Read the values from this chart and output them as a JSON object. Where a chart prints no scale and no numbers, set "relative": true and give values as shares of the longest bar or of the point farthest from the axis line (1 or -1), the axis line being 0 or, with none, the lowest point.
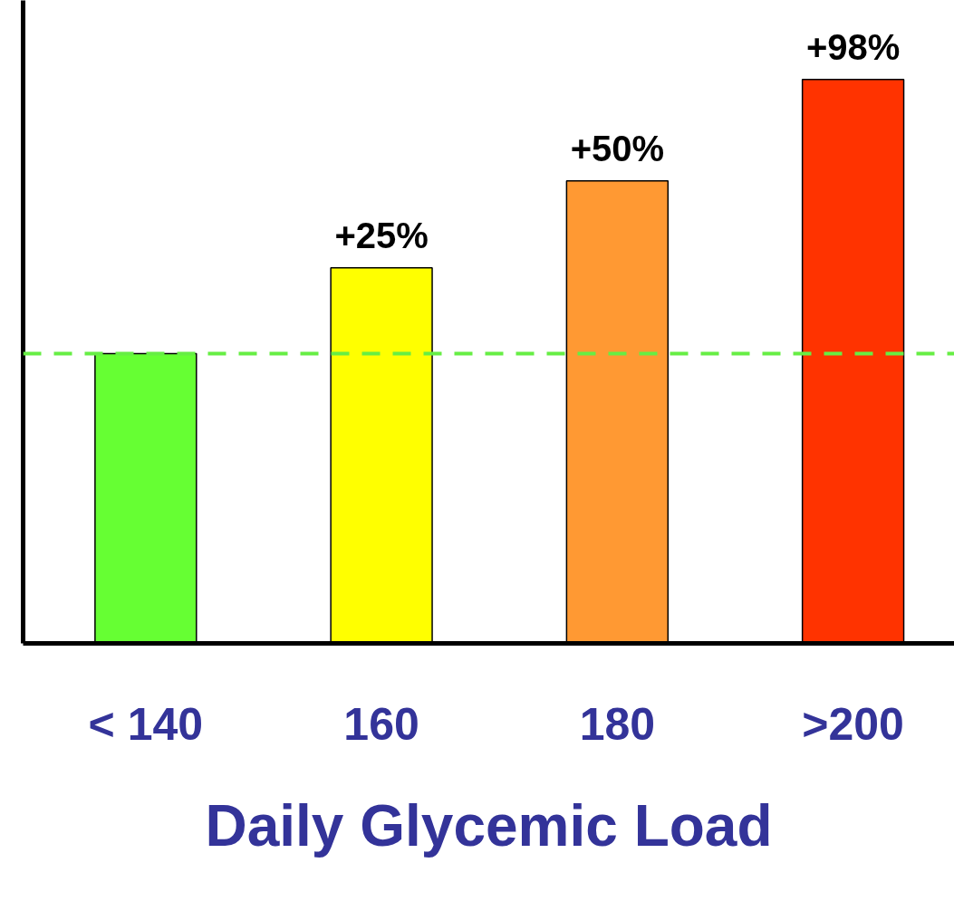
{
  "chart_data": {
    "type": "bar",
    "xlabel": "Daily Glycemic Load",
    "categories": [
      "< 140",
      "160",
      "180",
      ">200"
    ],
    "values": [
      0.514,
      0.666,
      0.82,
      1
    ],
    "colors": [
      "#66ff33",
      "#ffff00",
      "#ff9933",
      "#ff3300"
    ],
    "relative": true,
    "annotations": [
      {
        "text": "+25%",
        "x": "160",
        "y": 0.666
      },
      {
        "text": "+50%",
        "x": "180",
        "y": 0.82
      },
      {
        "text": "+98%",
        "x": ">200",
        "y": 1
      }
    ],
    "ref_lines": [
      {
        "axis": "y",
        "value": 0.514,
        "label": null,
        "color": "#66ee44",
        "line_style": "dashed"
      }
    ],
    "grid": false
  }
}
